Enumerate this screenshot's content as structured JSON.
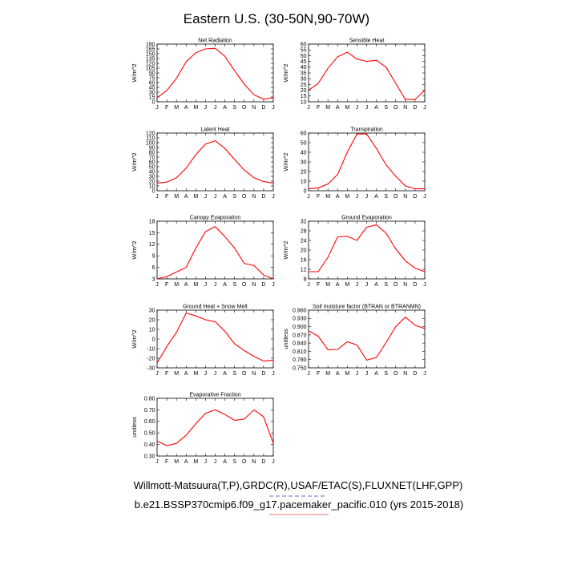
{
  "figure": {
    "title": "Eastern U.S. (30-50N,90-70W)",
    "footer_line1": "Willmott-Matsuura(T,P),GRDC(R),USAF/ETAC(S),FLUXNET(LHF,GPP)",
    "footer_line2": "b.e21.BSSP370cmip6.f09_g17.pacemaker_pacific.010 (yrs 2015-2018)",
    "line_color": "#ff0000"
  },
  "chart_data": [
    {
      "type": "line",
      "title": "Net Radiation",
      "ylabel": "W/m^2",
      "x": [
        "J",
        "F",
        "M",
        "A",
        "M",
        "J",
        "J",
        "A",
        "S",
        "O",
        "N",
        "D",
        "J"
      ],
      "values": [
        13,
        35,
        73,
        125,
        153,
        165,
        167,
        142,
        97,
        55,
        22,
        8,
        13
      ],
      "ylim": [
        0,
        180
      ],
      "yticks": [
        "0",
        "15",
        "30",
        "45",
        "60",
        "75",
        "90",
        "105",
        "120",
        "135",
        "150",
        "165",
        "180"
      ]
    },
    {
      "type": "line",
      "title": "Sensible Heat",
      "ylabel": "W/m^2",
      "x": [
        "J",
        "F",
        "M",
        "A",
        "M",
        "J",
        "J",
        "A",
        "S",
        "O",
        "N",
        "D",
        "J"
      ],
      "values": [
        20,
        26,
        39,
        49,
        53,
        47,
        45,
        46,
        40,
        26,
        12,
        12,
        20
      ],
      "ylim": [
        10,
        60
      ],
      "yticks": [
        "10",
        "15",
        "20",
        "25",
        "30",
        "35",
        "40",
        "45",
        "50",
        "55",
        "60"
      ]
    },
    {
      "type": "line",
      "title": "Latent Heat",
      "ylabel": "W/m^2",
      "x": [
        "J",
        "F",
        "M",
        "A",
        "M",
        "J",
        "J",
        "A",
        "S",
        "O",
        "N",
        "D",
        "J"
      ],
      "values": [
        16,
        18,
        27,
        47,
        75,
        97,
        104,
        88,
        65,
        43,
        27,
        19,
        16
      ],
      "ylim": [
        0,
        120
      ],
      "yticks": [
        "0",
        "10",
        "20",
        "30",
        "40",
        "50",
        "60",
        "70",
        "80",
        "90",
        "100",
        "110",
        "120"
      ]
    },
    {
      "type": "line",
      "title": "Transpiration",
      "ylabel": "W/m^2",
      "x": [
        "J",
        "F",
        "M",
        "A",
        "M",
        "J",
        "J",
        "A",
        "S",
        "O",
        "N",
        "D",
        "J"
      ],
      "values": [
        2,
        3,
        7,
        17,
        40,
        59,
        59,
        44,
        27,
        15,
        5,
        2,
        2
      ],
      "ylim": [
        0,
        60
      ],
      "yticks": [
        "0",
        "10",
        "20",
        "30",
        "40",
        "50",
        "60"
      ]
    },
    {
      "type": "line",
      "title": "Canopy Evaporation",
      "ylabel": "W/m^2",
      "x": [
        "J",
        "F",
        "M",
        "A",
        "M",
        "J",
        "J",
        "A",
        "S",
        "O",
        "N",
        "D",
        "J"
      ],
      "values": [
        3,
        3.6,
        4.8,
        6,
        11,
        15.3,
        16.6,
        14,
        11,
        7,
        6.5,
        4,
        3
      ],
      "ylim": [
        3,
        18
      ],
      "yticks": [
        "3",
        "6",
        "9",
        "12",
        "15",
        "18"
      ]
    },
    {
      "type": "line",
      "title": "Ground Evaporation",
      "ylabel": "W/m^2",
      "x": [
        "J",
        "F",
        "M",
        "A",
        "M",
        "J",
        "J",
        "A",
        "S",
        "O",
        "N",
        "D",
        "J"
      ],
      "values": [
        11,
        11,
        17,
        25.5,
        25.7,
        24,
        29.5,
        30.5,
        27,
        20.5,
        15.5,
        12.5,
        11
      ],
      "ylim": [
        8,
        32
      ],
      "yticks": [
        "8",
        "12",
        "16",
        "20",
        "24",
        "28",
        "32"
      ]
    },
    {
      "type": "line",
      "title": "Ground Heat + Snow Melt",
      "ylabel": "W/m^2",
      "x": [
        "J",
        "F",
        "M",
        "A",
        "M",
        "J",
        "J",
        "A",
        "S",
        "O",
        "N",
        "D",
        "J"
      ],
      "values": [
        -25,
        -8,
        7,
        27,
        24,
        20,
        18,
        8,
        -5,
        -12,
        -18,
        -23,
        -22
      ],
      "ylim": [
        -30,
        30
      ],
      "yticks": [
        "-30",
        "-20",
        "-10",
        "0",
        "10",
        "20",
        "30"
      ]
    },
    {
      "type": "line",
      "title": "Soil moisture factor (BTRAN or BTRANMN)",
      "ylabel": "unitless",
      "x": [
        "J",
        "F",
        "M",
        "A",
        "M",
        "J",
        "J",
        "A",
        "S",
        "O",
        "N",
        "D",
        "J"
      ],
      "values": [
        0.885,
        0.865,
        0.816,
        0.817,
        0.845,
        0.833,
        0.778,
        0.788,
        0.842,
        0.9,
        0.935,
        0.905,
        0.893
      ],
      "ylim": [
        0.75,
        0.96
      ],
      "yticks": [
        "0.750",
        "0.780",
        "0.810",
        "0.840",
        "0.870",
        "0.900",
        "0.930",
        "0.960"
      ]
    },
    {
      "type": "line",
      "title": "Evaporative Fraction",
      "ylabel": "unitless",
      "x": [
        "J",
        "F",
        "M",
        "A",
        "M",
        "J",
        "J",
        "A",
        "S",
        "O",
        "N",
        "D",
        "J"
      ],
      "values": [
        0.43,
        0.39,
        0.41,
        0.48,
        0.58,
        0.67,
        0.7,
        0.66,
        0.61,
        0.62,
        0.7,
        0.64,
        0.41
      ],
      "ylim": [
        0.3,
        0.8
      ],
      "yticks": [
        "0.30",
        "0.40",
        "0.50",
        "0.60",
        "0.70",
        "0.80"
      ]
    }
  ]
}
